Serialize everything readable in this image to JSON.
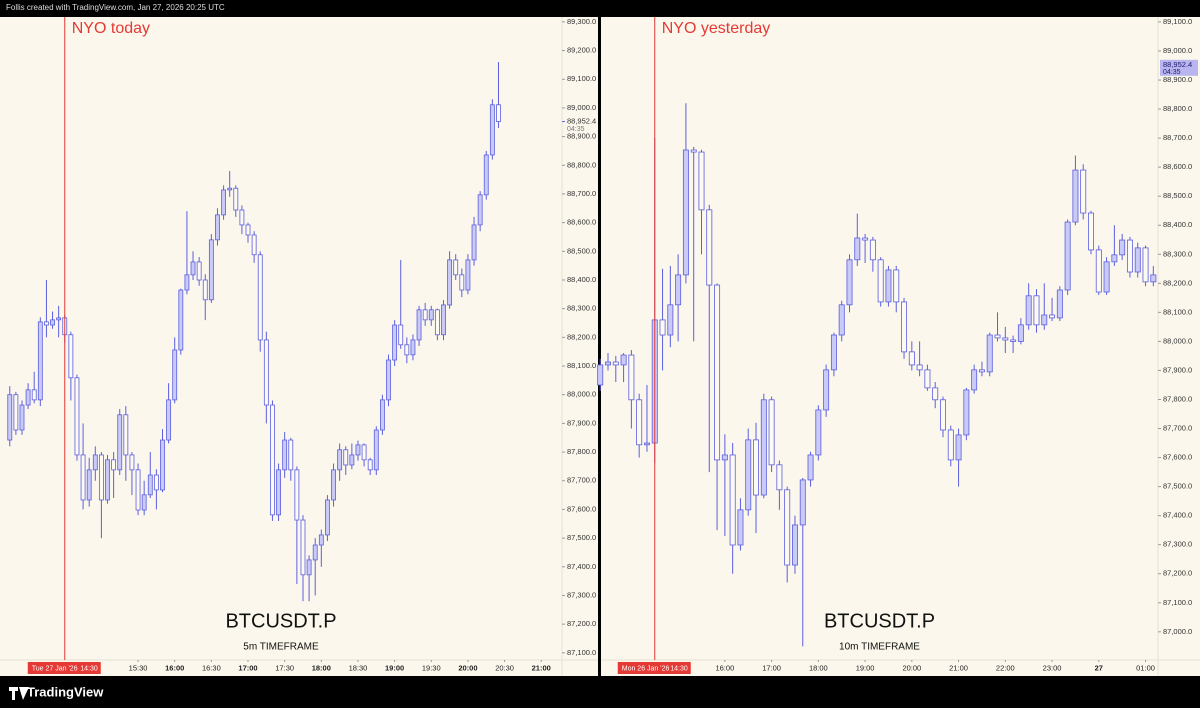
{
  "header": {
    "text": "Follis created with TradingView.com, Jan 27, 2026 20:25 UTC"
  },
  "footer": {
    "brand": "TradingView"
  },
  "chart_data": [
    {
      "type": "candlestick",
      "title": "NYO today",
      "symbol": "BTCUSDT.P",
      "timeframe": "5m TIMEFRAME",
      "x": [
        825,
        830,
        835,
        840,
        845,
        850,
        855,
        860,
        865,
        870,
        875,
        880,
        885,
        890,
        895,
        900,
        905,
        910,
        915,
        920,
        925,
        930,
        935,
        940,
        945,
        950,
        955,
        960,
        965,
        970,
        975,
        980,
        985,
        990,
        995,
        1000,
        1005,
        1010,
        1015,
        1020,
        1025,
        1030,
        1035,
        1040,
        1045,
        1050,
        1055,
        1060,
        1065,
        1070,
        1075,
        1080,
        1085,
        1090,
        1095,
        1100,
        1105,
        1110,
        1115,
        1120,
        1125,
        1130,
        1135,
        1140,
        1145,
        1150,
        1155,
        1160,
        1165,
        1170,
        1175,
        1180,
        1185,
        1190,
        1195,
        1200,
        1205,
        1210,
        1215,
        1220,
        1225
      ],
      "open": [
        87842,
        88000,
        87877,
        87964,
        88017,
        87982,
        88254,
        88243,
        88261,
        88268,
        88209,
        88059,
        87790,
        87633,
        87738,
        87790,
        87633,
        87773,
        87738,
        87930,
        87790,
        87738,
        87598,
        87651,
        87720,
        87668,
        87842,
        87982,
        88156,
        88365,
        88418,
        88463,
        88400,
        88331,
        88540,
        88627,
        88714,
        88720,
        88644,
        88592,
        88557,
        88488,
        88191,
        87964,
        87581,
        87738,
        87842,
        87738,
        87563,
        87372,
        87424,
        87476,
        87511,
        87633,
        87738,
        87808,
        87755,
        87790,
        87825,
        87773,
        87738,
        87877,
        87982,
        88121,
        88243,
        88174,
        88139,
        88191,
        88296,
        88261,
        88296,
        88209,
        88313,
        88470,
        88418,
        88365,
        88470,
        88592,
        88697,
        88836,
        89011
      ],
      "high": [
        88030,
        88010,
        87980,
        88040,
        88080,
        88270,
        88400,
        88290,
        88310,
        88280,
        88220,
        88070,
        87900,
        87780,
        87820,
        87800,
        87790,
        87800,
        87950,
        87960,
        87800,
        87760,
        87700,
        87800,
        87740,
        87880,
        88040,
        88200,
        88370,
        88640,
        88500,
        88480,
        88420,
        88560,
        88650,
        88730,
        88780,
        88730,
        88660,
        88600,
        88570,
        88500,
        88220,
        87980,
        87760,
        87870,
        87850,
        87750,
        87580,
        87440,
        87500,
        87530,
        87650,
        87760,
        87830,
        87820,
        87830,
        87840,
        87830,
        87780,
        87890,
        88000,
        88140,
        88260,
        88470,
        88200,
        88210,
        88310,
        88320,
        88310,
        88300,
        88330,
        88500,
        88490,
        88440,
        88490,
        88620,
        88710,
        88850,
        89030,
        89160
      ],
      "low": [
        87820,
        87860,
        87860,
        87950,
        87970,
        87960,
        88200,
        88230,
        88200,
        88180,
        87980,
        87770,
        87600,
        87610,
        87700,
        87500,
        87620,
        87640,
        87720,
        87700,
        87650,
        87580,
        87580,
        87640,
        87600,
        87660,
        87830,
        87970,
        88140,
        88350,
        88400,
        88380,
        88260,
        88320,
        88520,
        88610,
        88690,
        88620,
        88560,
        88530,
        88460,
        88150,
        87900,
        87560,
        87560,
        87710,
        87700,
        87340,
        87280,
        87280,
        87300,
        87400,
        87490,
        87610,
        87700,
        87720,
        87740,
        87770,
        87750,
        87720,
        87720,
        87860,
        87960,
        88100,
        88160,
        88110,
        88120,
        88170,
        88240,
        88240,
        88190,
        88190,
        88300,
        88400,
        88340,
        88350,
        88450,
        88570,
        88680,
        88820,
        88930
      ],
      "close": [
        88000,
        87877,
        87964,
        88017,
        87982,
        88254,
        88243,
        88261,
        88268,
        88209,
        88059,
        87790,
        87633,
        87738,
        87790,
        87633,
        87773,
        87738,
        87930,
        87790,
        87738,
        87598,
        87651,
        87720,
        87668,
        87842,
        87982,
        88156,
        88365,
        88418,
        88463,
        88400,
        88331,
        88540,
        88627,
        88714,
        88720,
        88644,
        88592,
        88557,
        88488,
        88191,
        87964,
        87581,
        87738,
        87842,
        87738,
        87563,
        87372,
        87424,
        87476,
        87511,
        87633,
        87738,
        87808,
        87755,
        87790,
        87825,
        87773,
        87738,
        87877,
        87982,
        88121,
        88243,
        88174,
        88139,
        88191,
        88296,
        88261,
        88296,
        88209,
        88313,
        88470,
        88418,
        88365,
        88470,
        88592,
        88697,
        88836,
        89011,
        88952.4
      ],
      "color": "#5b5fe0",
      "up_color": "#c9caf7",
      "down_color": "#fdfaf2",
      "xlim": [
        817,
        1277
      ],
      "ylim": [
        87075,
        89317
      ],
      "xticks": [
        {
          "value": 930,
          "label": "15:30"
        },
        {
          "value": 960,
          "label": "16:00",
          "bold": true
        },
        {
          "value": 990,
          "label": "16:30"
        },
        {
          "value": 1020,
          "label": "17:00",
          "bold": true
        },
        {
          "value": 1050,
          "label": "17:30"
        },
        {
          "value": 1080,
          "label": "18:00",
          "bold": true
        },
        {
          "value": 1110,
          "label": "18:30"
        },
        {
          "value": 1140,
          "label": "19:00",
          "bold": true
        },
        {
          "value": 1170,
          "label": "19:30"
        },
        {
          "value": 1200,
          "label": "20:00",
          "bold": true
        },
        {
          "value": 1230,
          "label": "20:30"
        },
        {
          "value": 1260,
          "label": "21:00",
          "bold": true
        }
      ],
      "yticks": [
        {
          "value": 89300,
          "label": "89,300.0"
        },
        {
          "value": 89200,
          "label": "89,200.0"
        },
        {
          "value": 89100,
          "label": "89,100.0"
        },
        {
          "value": 89000,
          "label": "89,000.0"
        },
        {
          "value": 88900,
          "label": "88,900.0"
        },
        {
          "value": 88800,
          "label": "88,800.0"
        },
        {
          "value": 88700,
          "label": "88,700.0"
        },
        {
          "value": 88600,
          "label": "88,600.0"
        },
        {
          "value": 88500,
          "label": "88,500.0"
        },
        {
          "value": 88400,
          "label": "88,400.0"
        },
        {
          "value": 88300,
          "label": "88,300.0"
        },
        {
          "value": 88200,
          "label": "88,200.0"
        },
        {
          "value": 88100,
          "label": "88,100.0"
        },
        {
          "value": 88000,
          "label": "88,000.0"
        },
        {
          "value": 87900,
          "label": "87,900.0"
        },
        {
          "value": 87800,
          "label": "87,800.0"
        },
        {
          "value": 87700,
          "label": "87,700.0"
        },
        {
          "value": 87600,
          "label": "87,600.0"
        },
        {
          "value": 87500,
          "label": "87,500.0"
        },
        {
          "value": 87400,
          "label": "87,400.0"
        },
        {
          "value": 87300,
          "label": "87,300.0"
        },
        {
          "value": 87200,
          "label": "87,200.0"
        },
        {
          "value": 87100,
          "label": "87,100.0"
        }
      ],
      "marker": {
        "x": 870,
        "date": "Tue 27 Jan '26",
        "time": "14:30",
        "color": "#e53935"
      },
      "last_price": {
        "value": 88952.4,
        "label": "88,952.4",
        "countdown": "04:35",
        "highlight": false
      }
    },
    {
      "type": "candlestick",
      "title": "NYO yesterday",
      "symbol": "BTCUSDT.P",
      "timeframe": "10m TIMEFRAME",
      "x": [
        800,
        810,
        820,
        830,
        840,
        850,
        860,
        870,
        880,
        890,
        900,
        910,
        920,
        930,
        940,
        950,
        960,
        970,
        980,
        990,
        1000,
        1010,
        1020,
        1030,
        1040,
        1050,
        1060,
        1070,
        1080,
        1090,
        1100,
        1110,
        1120,
        1130,
        1140,
        1150,
        1160,
        1170,
        1180,
        1190,
        1200,
        1210,
        1220,
        1230,
        1240,
        1250,
        1260,
        1270,
        1280,
        1290,
        1300,
        1310,
        1320,
        1330,
        1340,
        1350,
        1360,
        1370,
        1380,
        1390,
        1400,
        1410,
        1420,
        1430,
        1440,
        1450,
        1460,
        1470,
        1480,
        1490,
        1500,
        1510
      ],
      "open": [
        87850,
        87919,
        87929,
        87919,
        87953,
        87799,
        87644,
        87650,
        88074,
        88022,
        88126,
        88229,
        88659,
        88652,
        88453,
        88194,
        87592,
        87609,
        87299,
        87420,
        87661,
        87471,
        87799,
        87575,
        87489,
        87230,
        87368,
        87523,
        87609,
        87764,
        87902,
        88022,
        88126,
        88281,
        88356,
        88349,
        88281,
        88136,
        88246,
        88136,
        87964,
        87919,
        87902,
        87840,
        87799,
        87695,
        87592,
        87678,
        87833,
        87902,
        87895,
        88022,
        88012,
        88005,
        88000,
        88057,
        88157,
        88057,
        88091,
        88081,
        88177,
        88411,
        88590,
        88442,
        88315,
        88170,
        88274,
        88298,
        88349,
        88239,
        88322,
        88205
      ],
      "high": [
        87940,
        87960,
        87950,
        87960,
        87970,
        87820,
        87850,
        88700,
        88250,
        88260,
        88300,
        88820,
        88670,
        88660,
        88470,
        88200,
        87680,
        87650,
        87460,
        87700,
        87720,
        87820,
        87810,
        87590,
        87500,
        87400,
        87530,
        87620,
        87780,
        87920,
        88030,
        88140,
        88300,
        88440,
        88370,
        88360,
        88290,
        88260,
        88260,
        88150,
        88000,
        88000,
        87920,
        87860,
        87810,
        87710,
        87700,
        87840,
        87920,
        87930,
        88030,
        88100,
        88050,
        88020,
        88080,
        88200,
        88180,
        88200,
        88150,
        88190,
        88420,
        88640,
        88610,
        88450,
        88330,
        88290,
        88400,
        88370,
        88360,
        88340,
        88330,
        88260
      ],
      "low": [
        87830,
        87900,
        87860,
        87860,
        87700,
        87600,
        87620,
        87580,
        87900,
        87980,
        88000,
        88200,
        88000,
        88300,
        87550,
        87350,
        87330,
        87200,
        87280,
        87400,
        87340,
        87460,
        87550,
        87420,
        87170,
        87200,
        86950,
        87500,
        87590,
        87740,
        87880,
        88000,
        88100,
        88260,
        88270,
        88240,
        88120,
        88120,
        88100,
        87940,
        87900,
        87880,
        87830,
        87770,
        87670,
        87570,
        87500,
        87660,
        87820,
        87880,
        87880,
        88000,
        87960,
        87960,
        87990,
        88040,
        88030,
        88040,
        88070,
        88070,
        88160,
        88400,
        88420,
        88300,
        88160,
        88160,
        88260,
        88280,
        88220,
        88220,
        88190,
        88190
      ],
      "close": [
        87919,
        87929,
        87919,
        87953,
        87799,
        87644,
        87650,
        88074,
        88022,
        88126,
        88229,
        88659,
        88652,
        88453,
        88194,
        87592,
        87609,
        87299,
        87420,
        87661,
        87471,
        87799,
        87575,
        87489,
        87230,
        87368,
        87523,
        87609,
        87764,
        87902,
        88022,
        88126,
        88281,
        88356,
        88349,
        88281,
        88136,
        88246,
        88136,
        87964,
        87919,
        87902,
        87840,
        87799,
        87695,
        87592,
        87678,
        87833,
        87902,
        87895,
        88022,
        88012,
        88005,
        88000,
        88057,
        88157,
        88057,
        88091,
        88081,
        88177,
        88411,
        88590,
        88442,
        88315,
        88170,
        88274,
        88298,
        88349,
        88239,
        88322,
        88205,
        88229
      ],
      "color": "#5b5fe0",
      "up_color": "#c9caf7",
      "down_color": "#fdfaf2",
      "xlim": [
        801,
        1516
      ],
      "ylim": [
        86903,
        89117
      ],
      "xticks": [
        {
          "value": 960,
          "label": "16:00"
        },
        {
          "value": 1020,
          "label": "17:00"
        },
        {
          "value": 1080,
          "label": "18:00"
        },
        {
          "value": 1140,
          "label": "19:00"
        },
        {
          "value": 1200,
          "label": "20:00"
        },
        {
          "value": 1260,
          "label": "21:00"
        },
        {
          "value": 1320,
          "label": "22:00"
        },
        {
          "value": 1380,
          "label": "23:00"
        },
        {
          "value": 1440,
          "label": "27",
          "bold": true
        },
        {
          "value": 1500,
          "label": "01:00"
        }
      ],
      "yticks": [
        {
          "value": 89100,
          "label": "89,100.0"
        },
        {
          "value": 89000,
          "label": "89,000.0"
        },
        {
          "value": 88900,
          "label": "88,900.0"
        },
        {
          "value": 88800,
          "label": "88,800.0"
        },
        {
          "value": 88700,
          "label": "88,700.0"
        },
        {
          "value": 88600,
          "label": "88,600.0"
        },
        {
          "value": 88500,
          "label": "88,500.0"
        },
        {
          "value": 88400,
          "label": "88,400.0"
        },
        {
          "value": 88300,
          "label": "88,300.0"
        },
        {
          "value": 88200,
          "label": "88,200.0"
        },
        {
          "value": 88100,
          "label": "88,100.0"
        },
        {
          "value": 88000,
          "label": "88,000.0"
        },
        {
          "value": 87900,
          "label": "87,900.0"
        },
        {
          "value": 87800,
          "label": "87,800.0"
        },
        {
          "value": 87700,
          "label": "87,700.0"
        },
        {
          "value": 87600,
          "label": "87,600.0"
        },
        {
          "value": 87500,
          "label": "87,500.0"
        },
        {
          "value": 87400,
          "label": "87,400.0"
        },
        {
          "value": 87300,
          "label": "87,300.0"
        },
        {
          "value": 87200,
          "label": "87,200.0"
        },
        {
          "value": 87100,
          "label": "87,100.0"
        },
        {
          "value": 87000,
          "label": "87,000.0"
        }
      ],
      "marker": {
        "x": 870,
        "date": "Mon 26 Jan '26",
        "time": "14:30",
        "color": "#e53935"
      },
      "last_price": {
        "value": 88952.4,
        "label": "88,952.4",
        "countdown": "04:35",
        "highlight": true
      }
    }
  ]
}
